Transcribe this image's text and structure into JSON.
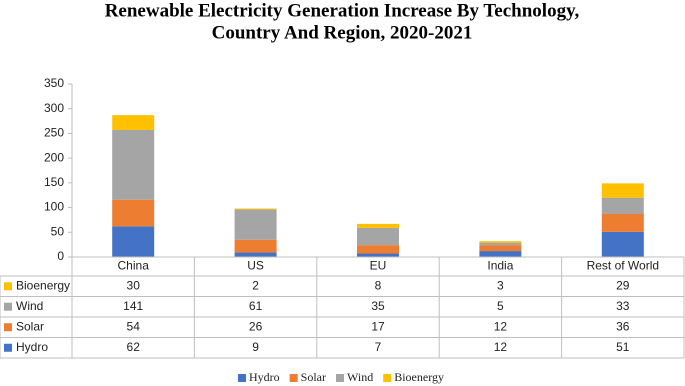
{
  "chart_data": {
    "type": "bar",
    "stacked": true,
    "title": [
      "Renewable Electricity Generation Increase By Technology,",
      "Country And Region, 2020-2021"
    ],
    "categories": [
      "China",
      "US",
      "EU",
      "India",
      "Rest of World"
    ],
    "series": [
      {
        "name": "Hydro",
        "color": "#4472c4",
        "values": [
          62,
          9,
          7,
          12,
          51
        ]
      },
      {
        "name": "Solar",
        "color": "#ed7d31",
        "values": [
          54,
          26,
          17,
          12,
          36
        ]
      },
      {
        "name": "Wind",
        "color": "#a5a5a5",
        "values": [
          141,
          61,
          35,
          5,
          33
        ]
      },
      {
        "name": "Bioenergy",
        "color": "#ffc000",
        "values": [
          30,
          2,
          8,
          3,
          29
        ]
      }
    ],
    "ylim": [
      0,
      350
    ],
    "yticks": [
      0,
      50,
      100,
      150,
      200,
      250,
      300,
      350
    ],
    "grid": false
  }
}
